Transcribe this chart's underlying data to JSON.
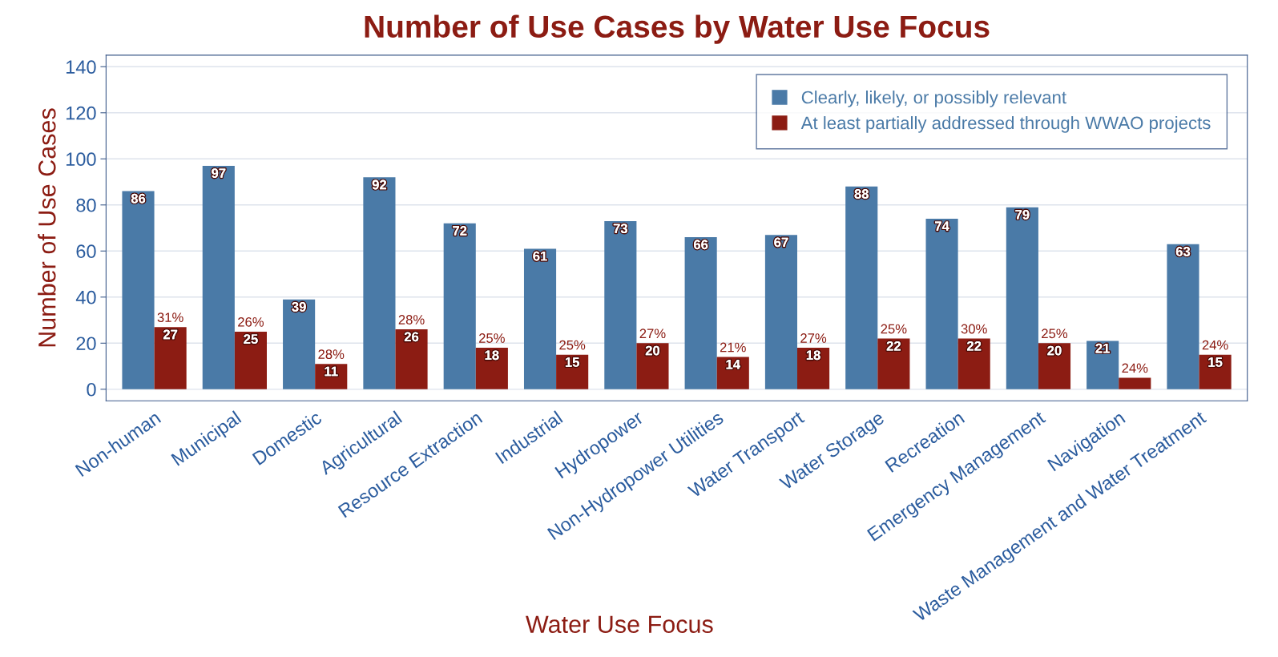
{
  "chart_data": {
    "type": "bar",
    "title": "Number of Use Cases by Water Use Focus",
    "xlabel": "Water Use Focus",
    "ylabel": "Number of Use Cases",
    "categories": [
      "Non-human",
      "Municipal",
      "Domestic",
      "Agricultural",
      "Resource Extraction",
      "Industrial",
      "Hydropower",
      "Non-Hydropower Utilities",
      "Water Transport",
      "Water Storage",
      "Recreation",
      "Emergency Management",
      "Navigation",
      "Waste Management and Water Treatment"
    ],
    "series": [
      {
        "name": "Clearly, likely, or possibly relevant",
        "color": "#4a7aa7",
        "values": [
          86,
          97,
          39,
          92,
          72,
          61,
          73,
          66,
          67,
          88,
          74,
          79,
          21,
          63
        ],
        "value_labels": [
          "86",
          "97",
          "39",
          "92",
          "72",
          "61",
          "73",
          "66",
          "67",
          "88",
          "74",
          "79",
          "21",
          "63"
        ]
      },
      {
        "name": "At least partially addressed through WWAO projects",
        "color": "#8c1c13",
        "values": [
          27,
          25,
          11,
          26,
          18,
          15,
          20,
          14,
          18,
          22,
          22,
          20,
          5,
          15
        ],
        "value_labels": [
          "27",
          "25",
          "11",
          "26",
          "18",
          "15",
          "20",
          "14",
          "18",
          "22",
          "22",
          "20",
          null,
          "15"
        ]
      }
    ],
    "annotations": [
      {
        "text": "31%",
        "x": "Non-human",
        "y": 27
      },
      {
        "text": "26%",
        "x": "Municipal",
        "y": 25
      },
      {
        "text": "28%",
        "x": "Domestic",
        "y": 11
      },
      {
        "text": "28%",
        "x": "Agricultural",
        "y": 26
      },
      {
        "text": "25%",
        "x": "Resource Extraction",
        "y": 18
      },
      {
        "text": "25%",
        "x": "Industrial",
        "y": 15
      },
      {
        "text": "27%",
        "x": "Hydropower",
        "y": 20
      },
      {
        "text": "21%",
        "x": "Non-Hydropower Utilities",
        "y": 14
      },
      {
        "text": "27%",
        "x": "Water Transport",
        "y": 18
      },
      {
        "text": "25%",
        "x": "Water Storage",
        "y": 22
      },
      {
        "text": "30%",
        "x": "Recreation",
        "y": 22
      },
      {
        "text": "25%",
        "x": "Emergency Management",
        "y": 20
      },
      {
        "text": "24%",
        "x": "Navigation",
        "y": 5
      },
      {
        "text": "24%",
        "x": "Waste Management and Water Treatment",
        "y": 15
      }
    ],
    "ylim": [
      -5,
      145
    ],
    "yticks": [
      0,
      20,
      40,
      60,
      80,
      100,
      120,
      140
    ],
    "grid": "y",
    "legend": "top right"
  }
}
